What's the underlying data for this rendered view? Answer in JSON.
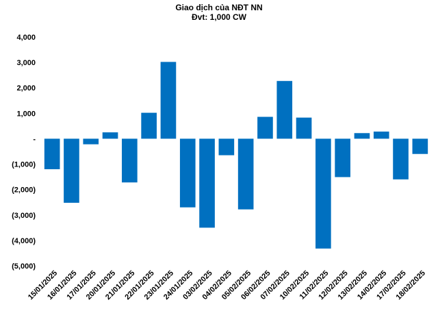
{
  "chart_data": {
    "type": "bar",
    "title": "Giao dịch của NĐT NN",
    "subtitle": "Đvt: 1,000 CW",
    "xlabel": "",
    "ylabel": "",
    "ylim": [
      -5000,
      4000
    ],
    "yticks": [
      4000,
      3000,
      2000,
      1000,
      0,
      -1000,
      -2000,
      -3000,
      -4000,
      -5000
    ],
    "ytick_labels": [
      "4,000",
      "3,000",
      "2,000",
      "1,000",
      "-",
      "(1,000)",
      "(2,000)",
      "(3,000)",
      "(4,000)",
      "(5,000)"
    ],
    "grid": false,
    "legend": "none",
    "bar_color": "#0070C0",
    "categories": [
      "15/01/2025",
      "16/01/2025",
      "17/01/2025",
      "20/01/2025",
      "21/01/2025",
      "22/01/2025",
      "23/01/2025",
      "24/01/2025",
      "03/02/2025",
      "04/02/2025",
      "05/02/2025",
      "06/02/2025",
      "07/02/2025",
      "10/02/2025",
      "11/02/2025",
      "12/02/2025",
      "13/02/2025",
      "14/02/2025",
      "17/02/2025",
      "18/02/2025"
    ],
    "values": [
      -1200,
      -2520,
      -220,
      250,
      -1720,
      1020,
      3020,
      -2700,
      -3500,
      -650,
      -2780,
      860,
      2270,
      830,
      -4320,
      -1510,
      220,
      280,
      -1600,
      -600
    ]
  }
}
